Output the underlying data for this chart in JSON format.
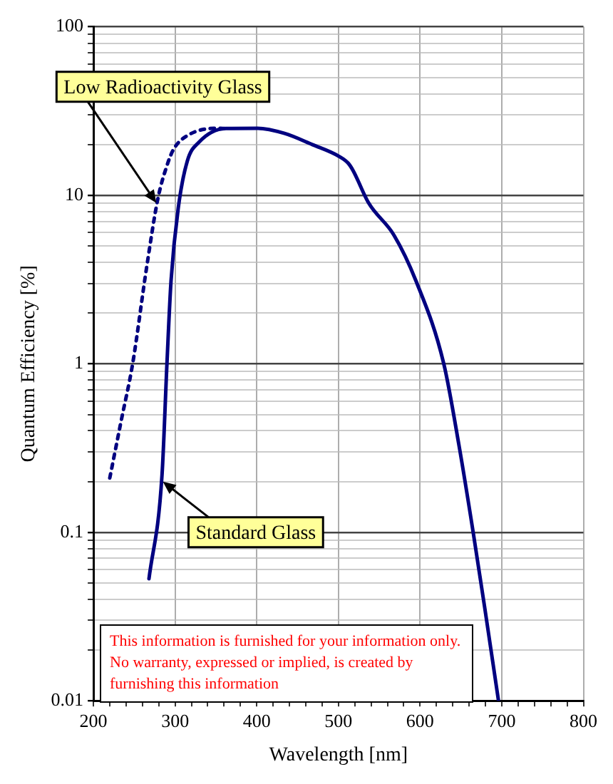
{
  "chart_data": {
    "type": "line",
    "xlabel": "Wavelength [nm]",
    "ylabel": "Quantum Efficiency [%]",
    "log": "y",
    "grid": true,
    "legend": false,
    "marker": "none",
    "xlim": [
      200,
      800
    ],
    "ylim": [
      0.01,
      100
    ],
    "xticks": [
      200,
      {
        "value": 220,
        "label": null
      },
      {
        "value": 240,
        "label": null
      },
      {
        "value": 260,
        "label": null
      },
      {
        "value": 280,
        "label": null
      },
      300,
      {
        "value": 320,
        "label": null
      },
      {
        "value": 340,
        "label": null
      },
      {
        "value": 360,
        "label": null
      },
      {
        "value": 380,
        "label": null
      },
      400,
      {
        "value": 420,
        "label": null
      },
      {
        "value": 440,
        "label": null
      },
      {
        "value": 460,
        "label": null
      },
      {
        "value": 480,
        "label": null
      },
      500,
      {
        "value": 520,
        "label": null
      },
      {
        "value": 540,
        "label": null
      },
      {
        "value": 560,
        "label": null
      },
      {
        "value": 580,
        "label": null
      },
      600,
      {
        "value": 620,
        "label": null
      },
      {
        "value": 640,
        "label": null
      },
      {
        "value": 660,
        "label": null
      },
      {
        "value": 680,
        "label": null
      },
      700,
      {
        "value": 720,
        "label": null
      },
      {
        "value": 740,
        "label": null
      },
      {
        "value": 760,
        "label": null
      },
      {
        "value": 780,
        "label": null
      },
      800
    ],
    "yticks": [
      0.01,
      {
        "value": 0.02,
        "label": null
      },
      {
        "value": 0.03,
        "label": null
      },
      {
        "value": 0.04,
        "label": null
      },
      {
        "value": 0.05,
        "label": null
      },
      {
        "value": 0.06,
        "label": null
      },
      {
        "value": 0.07,
        "label": null
      },
      {
        "value": 0.08,
        "label": null
      },
      {
        "value": 0.09,
        "label": null
      },
      0.1,
      {
        "value": 0.2,
        "label": null
      },
      {
        "value": 0.3,
        "label": null
      },
      {
        "value": 0.4,
        "label": null
      },
      {
        "value": 0.5,
        "label": null
      },
      {
        "value": 0.6,
        "label": null
      },
      {
        "value": 0.7,
        "label": null
      },
      {
        "value": 0.8,
        "label": null
      },
      {
        "value": 0.9,
        "label": null
      },
      1,
      {
        "value": 2,
        "label": null
      },
      {
        "value": 3,
        "label": null
      },
      {
        "value": 4,
        "label": null
      },
      {
        "value": 5,
        "label": null
      },
      {
        "value": 6,
        "label": null
      },
      {
        "value": 7,
        "label": null
      },
      {
        "value": 8,
        "label": null
      },
      {
        "value": 9,
        "label": null
      },
      10,
      {
        "value": 20,
        "label": null
      },
      {
        "value": 30,
        "label": null
      },
      {
        "value": 40,
        "label": null
      },
      {
        "value": 50,
        "label": null
      },
      {
        "value": 60,
        "label": null
      },
      {
        "value": 70,
        "label": null
      },
      {
        "value": 80,
        "label": null
      },
      {
        "value": 90,
        "label": null
      },
      100
    ],
    "series": [
      {
        "color": "#000080",
        "line_style": "solid",
        "x": [
          268,
          284,
          290,
          295,
          304,
          315,
          329,
          362,
          401,
          434,
          468,
          501,
          512,
          518,
          537,
          568,
          595,
          629,
          648,
          665,
          679,
          696
        ],
        "values": [
          0.053,
          0.22,
          1.0,
          3.1,
          8.5,
          16,
          20.6,
          24.9,
          25,
          23.3,
          20,
          17,
          15.5,
          14,
          9,
          5.8,
          3.1,
          1.0,
          0.32,
          0.1,
          0.036,
          0.01
        ]
      },
      {
        "color": "#000080",
        "line_style": "dotted",
        "x": [
          220,
          234,
          248,
          265,
          279,
          290,
          298,
          315,
          351,
          362
        ],
        "values": [
          0.21,
          0.46,
          1.0,
          3.7,
          9.6,
          15,
          18.7,
          22.6,
          25,
          24.9
        ]
      }
    ],
    "annotations": [
      {
        "text": "Low Radioactivity Glass",
        "x": 277,
        "y": 9
      },
      {
        "text": "Standard Glass",
        "x": 285,
        "y": 0.2
      },
      "This information is furnished for your information only.\nNo warranty, expressed or implied, is created by\nfurnishing this information"
    ]
  }
}
